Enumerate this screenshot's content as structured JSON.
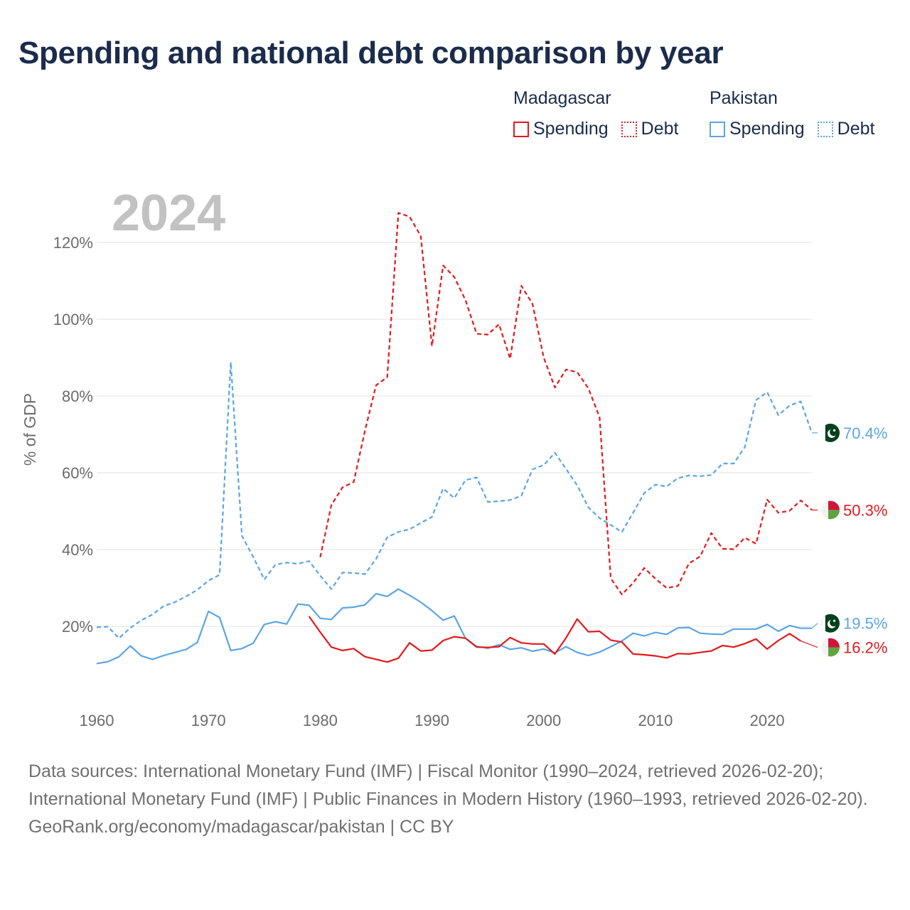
{
  "title": "Spending and national debt comparison by year",
  "legend": {
    "groups": [
      {
        "name": "Madagascar",
        "color": "#e31a1c",
        "items": [
          {
            "label": "Spending",
            "style": "solid"
          },
          {
            "label": "Debt",
            "style": "dotted"
          }
        ]
      },
      {
        "name": "Pakistan",
        "color": "#5aa5e6",
        "items": [
          {
            "label": "Spending",
            "style": "solid"
          },
          {
            "label": "Debt",
            "style": "dotted"
          }
        ]
      }
    ]
  },
  "footer": {
    "sources": "Data sources: International Monetary Fund (IMF) | Fiscal Monitor (1990–2024, retrieved 2026-02-20); International Monetary Fund (IMF) | Public Finances in Modern History (1960–1993, retrieved 2026-02-20).",
    "credit": "GeoRank.org/economy/madagascar/pakistan | CC BY"
  },
  "chart_data": {
    "type": "line",
    "year_watermark": "2024",
    "ylabel": "% of GDP",
    "xlim": [
      1960,
      2024
    ],
    "ylim": [
      0,
      130
    ],
    "xticks": [
      1960,
      1970,
      1980,
      1990,
      2000,
      2010,
      2020
    ],
    "yticks": [
      20,
      40,
      60,
      80,
      100,
      120
    ],
    "ytick_labels": [
      "20%",
      "40%",
      "60%",
      "80%",
      "100%",
      "120%"
    ],
    "series": [
      {
        "name": "Pakistan Debt",
        "country": "Pakistan",
        "metric": "Debt",
        "color": "#5aa5e6",
        "dashed": true,
        "start_year": 1960,
        "end_label": "70.4%",
        "flag": "pakistan",
        "values": [
          19.8,
          19.9,
          16.9,
          19.6,
          21.6,
          23.1,
          25.3,
          26.3,
          27.8,
          29.5,
          31.9,
          33.4,
          88.8,
          43.6,
          38.1,
          32.2,
          36.1,
          36.6,
          36.3,
          37.0,
          33.2,
          29.7,
          34.0,
          33.9,
          33.6,
          37.6,
          43.2,
          44.6,
          45.3,
          46.9,
          48.5,
          55.9,
          53.4,
          58.1,
          58.8,
          52.4,
          52.6,
          52.9,
          54.0,
          60.9,
          62.0,
          65.2,
          61.0,
          56.7,
          51.0,
          48.2,
          46.4,
          44.6,
          49.6,
          54.7,
          56.9,
          56.4,
          58.6,
          59.3,
          59.1,
          59.4,
          62.4,
          62.4,
          66.7,
          78.9,
          81.0,
          75.0,
          77.5,
          78.6,
          70.4
        ]
      },
      {
        "name": "Madagascar Debt",
        "country": "Madagascar",
        "metric": "Debt",
        "color": "#e31a1c",
        "dashed": true,
        "start_year": 1980,
        "end_label": "50.3%",
        "flag": "madagascar",
        "values": [
          38.0,
          51.6,
          56.2,
          57.6,
          70.9,
          82.8,
          84.9,
          127.7,
          126.7,
          121.7,
          93.0,
          114.0,
          111.0,
          105.0,
          96.2,
          96.0,
          98.7,
          89.7,
          108.7,
          104.0,
          90.0,
          82.2,
          86.9,
          86.2,
          82.0,
          74.5,
          32.5,
          28.3,
          31.3,
          35.2,
          32.4,
          30.0,
          30.5,
          36.4,
          38.2,
          44.3,
          40.2,
          40.1,
          43.1,
          41.5,
          53.0,
          49.6,
          50.1,
          52.8,
          50.3
        ]
      },
      {
        "name": "Pakistan Spending",
        "country": "Pakistan",
        "metric": "Spending",
        "color": "#5aa5e6",
        "dashed": false,
        "start_year": 1960,
        "end_label": "19.5%",
        "flag": "pakistan",
        "values": [
          10.3,
          10.8,
          12.1,
          14.9,
          12.3,
          11.4,
          12.4,
          13.2,
          14.0,
          15.8,
          23.9,
          22.3,
          13.7,
          14.2,
          15.6,
          20.5,
          21.2,
          20.6,
          25.8,
          25.5,
          22.1,
          21.8,
          24.8,
          25.0,
          25.6,
          28.5,
          27.8,
          29.7,
          28.1,
          26.3,
          24.1,
          21.6,
          22.7,
          16.9,
          14.8,
          14.3,
          15.2,
          14.0,
          14.4,
          13.5,
          14.1,
          13.1,
          14.7,
          13.2,
          12.4,
          13.3,
          14.7,
          16.2,
          18.2,
          17.5,
          18.4,
          17.9,
          19.6,
          19.7,
          18.2,
          18.0,
          17.9,
          19.3,
          19.3,
          19.3,
          20.5,
          18.7,
          20.2,
          19.5,
          19.5
        ]
      },
      {
        "name": "Madagascar Spending",
        "country": "Madagascar",
        "metric": "Spending",
        "color": "#e31a1c",
        "dashed": false,
        "start_year": 1979,
        "end_label": "16.2%",
        "flag": "madagascar",
        "values": [
          22.6,
          18.5,
          14.6,
          13.7,
          14.2,
          12.1,
          11.4,
          10.7,
          11.7,
          15.7,
          13.6,
          13.8,
          16.3,
          17.3,
          16.9,
          14.6,
          14.5,
          14.7,
          17.1,
          15.7,
          15.4,
          15.4,
          12.8,
          17.0,
          21.9,
          18.6,
          18.7,
          16.4,
          15.9,
          12.8,
          12.6,
          12.3,
          11.8,
          12.9,
          12.8,
          13.2,
          13.6,
          15.0,
          14.6,
          15.5,
          16.7,
          14.1,
          16.3,
          18.1,
          16.2
        ]
      }
    ]
  }
}
